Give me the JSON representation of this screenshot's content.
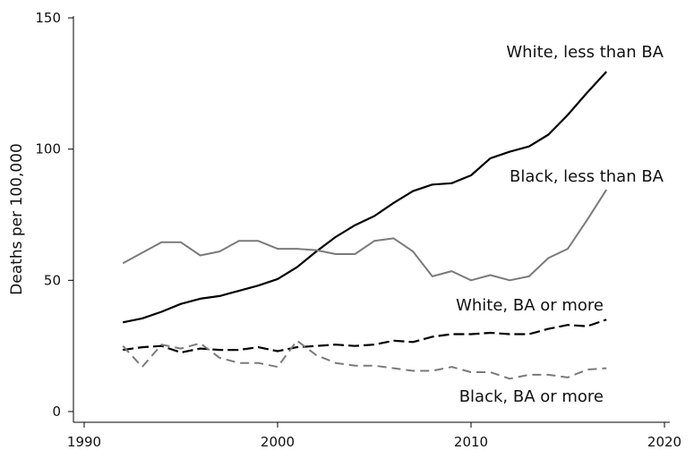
{
  "chart_data": {
    "type": "line",
    "title": "",
    "xlabel": "",
    "ylabel": "Deaths per 100,000",
    "xlim": [
      1990,
      2020
    ],
    "ylim": [
      0,
      150
    ],
    "xticks": [
      1990,
      2000,
      2010,
      2020
    ],
    "yticks": [
      0,
      50,
      100,
      150
    ],
    "grid": false,
    "legend": "none (series labeled directly on chart)",
    "series": [
      {
        "name": "White, less than BA",
        "color": "#000000",
        "dash": "solid",
        "x": [
          1992,
          1993,
          1994,
          1995,
          1996,
          1997,
          1998,
          1999,
          2000,
          2001,
          2002,
          2003,
          2004,
          2005,
          2006,
          2007,
          2008,
          2009,
          2010,
          2011,
          2012,
          2013,
          2014,
          2015,
          2016,
          2017
        ],
        "values": [
          34,
          35.5,
          38,
          41,
          43,
          44,
          46,
          48,
          50.5,
          55,
          61,
          66.5,
          71,
          74.5,
          79.5,
          84,
          86.5,
          87,
          90,
          96.5,
          99,
          101,
          105.5,
          113,
          121.5,
          129.5
        ]
      },
      {
        "name": "Black, less than BA",
        "color": "#7a7a7a",
        "dash": "solid",
        "x": [
          1992,
          1993,
          1994,
          1995,
          1996,
          1997,
          1998,
          1999,
          2000,
          2001,
          2002,
          2003,
          2004,
          2005,
          2006,
          2007,
          2008,
          2009,
          2010,
          2011,
          2012,
          2013,
          2014,
          2015,
          2016,
          2017
        ],
        "values": [
          56.5,
          60.5,
          64.5,
          64.5,
          59.5,
          61,
          65,
          65,
          62,
          62,
          61.5,
          60,
          60,
          65,
          66,
          61,
          51.5,
          53.5,
          50,
          52,
          50,
          51.5,
          58.5,
          62,
          73,
          84.5
        ]
      },
      {
        "name": "White, BA or more",
        "color": "#000000",
        "dash": "dashed",
        "x": [
          1992,
          1993,
          1994,
          1995,
          1996,
          1997,
          1998,
          1999,
          2000,
          2001,
          2002,
          2003,
          2004,
          2005,
          2006,
          2007,
          2008,
          2009,
          2010,
          2011,
          2012,
          2013,
          2014,
          2015,
          2016,
          2017
        ],
        "values": [
          23.5,
          24.5,
          25,
          22.5,
          24,
          23.5,
          23.5,
          24.5,
          23,
          24.5,
          25,
          25.5,
          25,
          25.5,
          27,
          26.5,
          28.5,
          29.5,
          29.5,
          30,
          29.5,
          29.5,
          31.5,
          33,
          32.5,
          35
        ]
      },
      {
        "name": "Black, BA or more",
        "color": "#7a7a7a",
        "dash": "dashed",
        "x": [
          1992,
          1993,
          1994,
          1995,
          1996,
          1997,
          1998,
          1999,
          2000,
          2001,
          2002,
          2003,
          2004,
          2005,
          2006,
          2007,
          2008,
          2009,
          2010,
          2011,
          2012,
          2013,
          2014,
          2015,
          2016,
          2017
        ],
        "values": [
          25,
          17,
          25.5,
          24,
          26,
          20.5,
          18.5,
          18.5,
          17,
          27,
          21.5,
          18.5,
          17.5,
          17.5,
          16.5,
          15.5,
          15.5,
          17,
          15,
          15,
          12.5,
          14,
          14,
          13,
          16,
          16.5
        ]
      }
    ]
  }
}
